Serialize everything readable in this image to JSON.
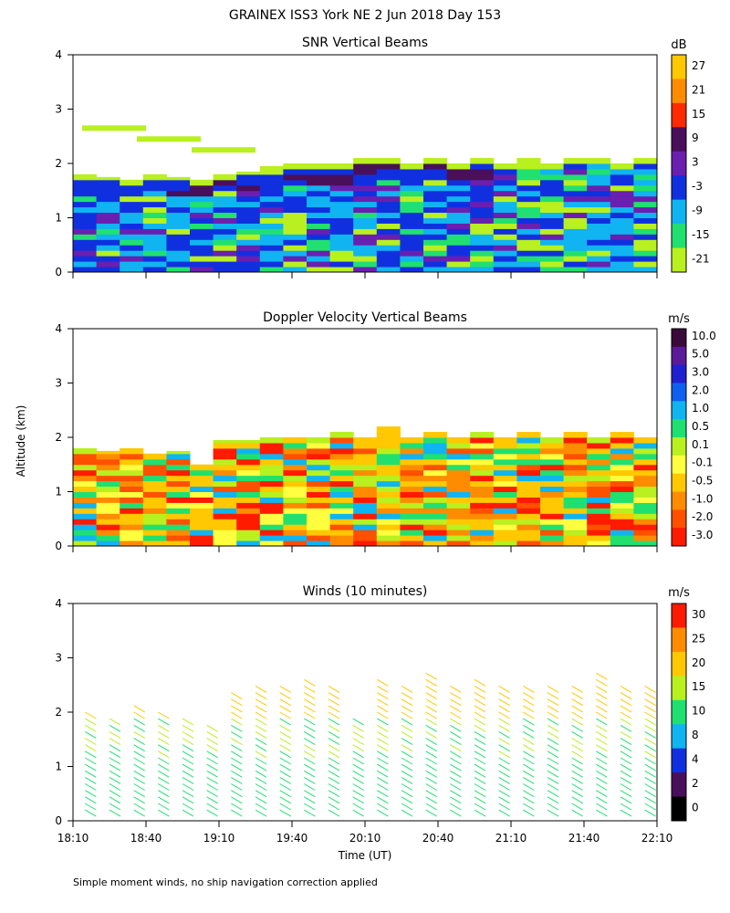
{
  "header": {
    "title": "GRAINEX ISS3 York NE   2 Jun 2018 Day 153",
    "y_axis_label": "Altitude (km)",
    "x_axis_label": "Time (UT)",
    "footnote": "Simple moment winds, no ship navigation correction applied"
  },
  "chart_data": [
    {
      "type": "heatmap",
      "id": "snr",
      "title": "SNR Vertical Beams",
      "unit": "dB",
      "ylim": [
        0,
        4
      ],
      "yticks": [
        "0",
        "1",
        "2",
        "3",
        "4"
      ],
      "x_start_minutes_utc": 1090,
      "x_end_minutes_utc": 1330,
      "colorbar_labels": [
        "27",
        "21",
        "15",
        "9",
        "3",
        "-3",
        "-9",
        "-15",
        "-21"
      ],
      "colorbar_colors": [
        "#ffc800",
        "#ff8c00",
        "#ff2a00",
        "#4a0f5a",
        "#6a1fb0",
        "#1030e0",
        "#10b4f0",
        "#20e070",
        "#b8f020"
      ],
      "top_km_profile": [
        1.8,
        1.75,
        1.7,
        1.8,
        1.75,
        1.7,
        1.8,
        1.85,
        1.95,
        2.0,
        2.05,
        2.05,
        2.1,
        2.1,
        2.05,
        2.1,
        2.05,
        2.1,
        2.0,
        2.1,
        2.05,
        2.1,
        2.1,
        2.05,
        2.1
      ],
      "upper_fragments_km": [
        2.7,
        2.5,
        2.3
      ]
    },
    {
      "type": "heatmap",
      "id": "doppler",
      "title": "Doppler Velocity Vertical Beams",
      "unit": "m/s",
      "ylim": [
        0,
        4
      ],
      "yticks": [
        "0",
        "1",
        "2",
        "3",
        "4"
      ],
      "x_start_minutes_utc": 1090,
      "x_end_minutes_utc": 1330,
      "colorbar_labels": [
        "10.0",
        "5.0",
        "3.0",
        "2.0",
        "1.0",
        "0.5",
        "0.1",
        "-0.1",
        "-0.5",
        "-1.0",
        "-2.0",
        "-3.0"
      ],
      "colorbar_colors": [
        "#3a0a3a",
        "#5a1a9a",
        "#2020d0",
        "#1060f0",
        "#10b4f0",
        "#20e070",
        "#b8f020",
        "#ffff40",
        "#ffc800",
        "#ff8c00",
        "#ff5000",
        "#ff1a00"
      ],
      "top_km_profile": [
        1.8,
        1.75,
        1.8,
        1.7,
        1.75,
        1.5,
        1.95,
        1.95,
        2.0,
        2.05,
        2.0,
        2.1,
        2.05,
        2.2,
        2.0,
        2.1,
        2.05,
        2.1,
        2.0,
        2.1,
        2.05,
        2.1,
        2.05,
        2.1,
        2.05
      ]
    },
    {
      "type": "wind_barbs",
      "id": "winds",
      "title": "Winds (10 minutes)",
      "unit": "m/s",
      "ylim": [
        0,
        4
      ],
      "yticks": [
        "0",
        "1",
        "2",
        "3",
        "4"
      ],
      "x_start_minutes_utc": 1090,
      "x_end_minutes_utc": 1330,
      "xticks": [
        "18:10",
        "18:40",
        "19:10",
        "19:40",
        "20:10",
        "20:40",
        "21:10",
        "21:40",
        "22:10"
      ],
      "colorbar_labels": [
        "30",
        "25",
        "20",
        "15",
        "10",
        "8",
        "4",
        "2",
        "0"
      ],
      "colorbar_colors": [
        "#ff1a00",
        "#ff8c00",
        "#ffc800",
        "#b8f020",
        "#20e070",
        "#10b4f0",
        "#1030e0",
        "#4a0f5a",
        "#000000"
      ],
      "profile_times_minutes_utc": [
        1095,
        1105,
        1115,
        1125,
        1135,
        1145,
        1155,
        1165,
        1175,
        1185,
        1195,
        1205,
        1215,
        1225,
        1235,
        1245,
        1255,
        1265,
        1275,
        1285,
        1295,
        1305,
        1315,
        1325
      ],
      "profile_tops_km": [
        2.1,
        2.0,
        2.2,
        2.1,
        2.0,
        1.8,
        2.4,
        2.6,
        2.5,
        2.7,
        2.6,
        2.0,
        2.7,
        2.6,
        2.8,
        2.5,
        2.7,
        2.6,
        2.5,
        2.6,
        2.5,
        2.8,
        2.5,
        2.6
      ],
      "typical_speed_ms": 15
    }
  ]
}
